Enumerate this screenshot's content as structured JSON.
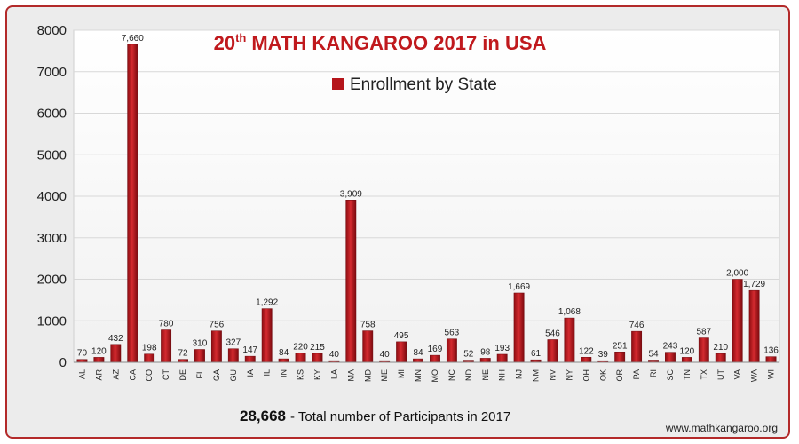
{
  "chart_data": {
    "type": "bar",
    "title": "20th MATH KANGAROO 2017 in USA",
    "title_parts": {
      "number": "20",
      "superscript": "th",
      "rest": "MATH KANGAROO 2017 in USA"
    },
    "legend": [
      "Enrollment by State"
    ],
    "legend_placement": "top-center",
    "xlabel": "",
    "ylabel": "",
    "ylim": [
      0,
      8000
    ],
    "yticks": [
      "0",
      "1000",
      "2000",
      "3000",
      "4000",
      "5000",
      "6000",
      "7000",
      "8000"
    ],
    "grid": true,
    "categories": [
      "AL",
      "AR",
      "AZ",
      "CA",
      "CO",
      "CT",
      "DE",
      "FL",
      "GA",
      "GU",
      "IA",
      "IL",
      "IN",
      "KS",
      "KY",
      "LA",
      "MA",
      "MD",
      "ME",
      "MI",
      "MN",
      "MO",
      "NC",
      "ND",
      "NE",
      "NH",
      "NJ",
      "NM",
      "NV",
      "NY",
      "OH",
      "OK",
      "OR",
      "PA",
      "RI",
      "SC",
      "TN",
      "TX",
      "UT",
      "VA",
      "WA",
      "WI"
    ],
    "series": [
      {
        "name": "Enrollment by State",
        "values": [
          70,
          120,
          432,
          7660,
          198,
          780,
          72,
          310,
          756,
          327,
          147,
          1292,
          84,
          220,
          215,
          40,
          3909,
          758,
          40,
          495,
          84,
          169,
          563,
          52,
          98,
          193,
          1669,
          61,
          546,
          1068,
          122,
          39,
          251,
          746,
          54,
          243,
          120,
          587,
          210,
          2000,
          1729,
          136
        ],
        "labels": [
          "70",
          "120",
          "432",
          "7,660",
          "198",
          "780",
          "72",
          "310",
          "756",
          "327",
          "147",
          "1,292",
          "84",
          "220",
          "215",
          "40",
          "3,909",
          "758",
          "40",
          "495",
          "84",
          "169",
          "563",
          "52",
          "98",
          "193",
          "1,669",
          "61",
          "546",
          "1,068",
          "122",
          "39",
          "251",
          "746",
          "54",
          "243",
          "120",
          "587",
          "210",
          "2,000",
          "1,729",
          "136"
        ]
      }
    ],
    "bar_color": "#b5151b",
    "footer": {
      "total": "28,668",
      "text": "- Total number of Participants in 2017"
    },
    "website": "www.mathkangaroo.org"
  }
}
